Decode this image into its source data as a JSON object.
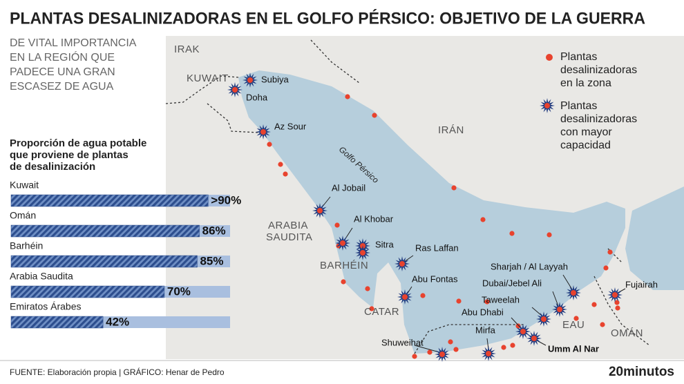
{
  "header": {
    "title": "PLANTAS DESALINIZADORAS EN EL GOLFO PÉRSICO: OBJETIVO DE LA GUERRA",
    "subtitle": [
      "DE VITAL IMPORTANCIA",
      "EN LA REGIÓN QUE",
      "PADECE UNA GRAN",
      "ESCASEZ DE AGUA"
    ]
  },
  "chart_data": {
    "type": "bar",
    "orientation": "horizontal",
    "title": [
      "Proporción de agua potable",
      "que proviene de plantas",
      "de desalinización"
    ],
    "categories": [
      "Kuwait",
      "Omán",
      "Barhéin",
      "Arabia Saudita",
      "Emiratos Árabes"
    ],
    "values": [
      90,
      86,
      85,
      70,
      42
    ],
    "value_labels": [
      ">90%",
      "86%",
      "85%",
      "70%",
      "42%"
    ],
    "xlim": [
      0,
      100
    ],
    "color": "#2d4e8e",
    "track_color": "#a9bfdf"
  },
  "map": {
    "regions": [
      "IRAK",
      "KUWAIT",
      "IRÁN",
      "ARABIA",
      "SAUDITA",
      "BARHÉIN",
      "CATAR",
      "EAU",
      "OMÁN"
    ],
    "sea_label": "Golfo Pérsico",
    "plants": [
      "Subiya",
      "Doha",
      "Az Sour",
      "Al Jobail",
      "Al Khobar",
      "Sitra",
      "Ras Laffan",
      "Abu Fontas",
      "Sharjah / Al Layyah",
      "Dubai/Jebel Ali",
      "Taweelah",
      "Abu Dhabi",
      "Fujairah",
      "Mirfa",
      "Shuweihat",
      "Umm Al Nar"
    ],
    "legend": [
      [
        "Plantas",
        "desalinizadoras",
        "en la zona"
      ],
      [
        "Plantas",
        "desalinizadoras",
        "con mayor",
        "capacidad"
      ]
    ]
  },
  "footer": {
    "source": "FUENTE: Elaboración propia  |  GRÁFICO: Henar de Pedro",
    "brand": "20minutos"
  }
}
